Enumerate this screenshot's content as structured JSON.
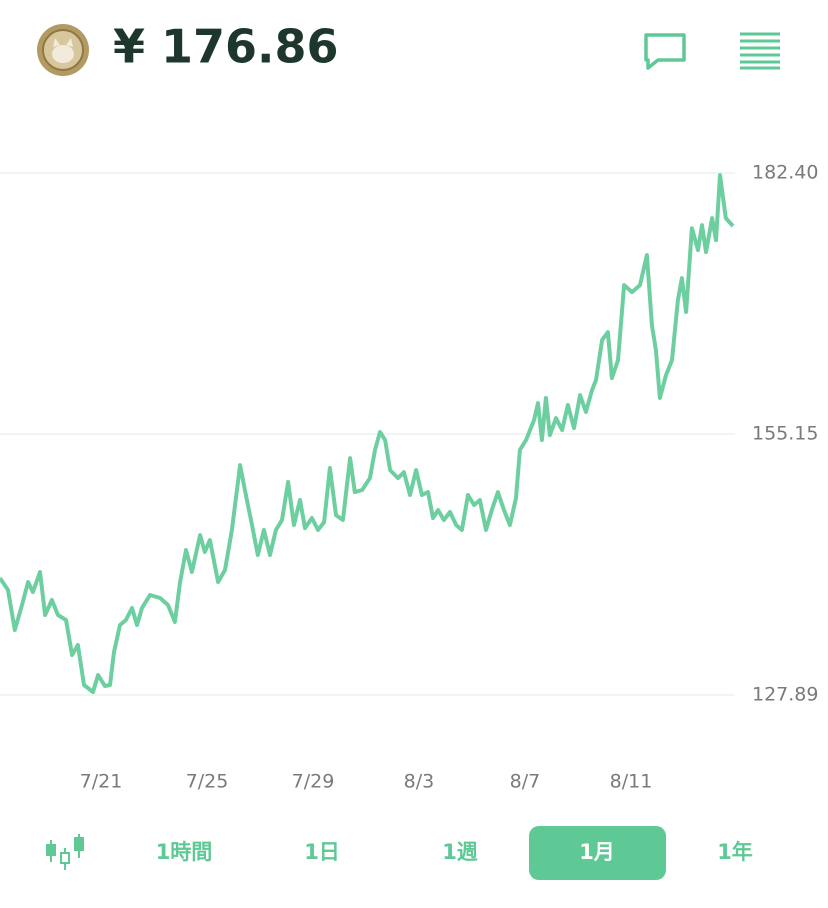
{
  "header": {
    "price": "¥ 176.86"
  },
  "chart_data": {
    "type": "line",
    "color": "#6dcfa0",
    "x": [
      -3.81,
      -3.51,
      -3.25,
      -2.98,
      -2.75,
      -2.57,
      -2.3,
      -2.11,
      -1.85,
      -1.62,
      -1.32,
      -1.09,
      -0.87,
      -0.64,
      -0.3,
      -0.11,
      0.15,
      0.34,
      0.49,
      0.72,
      0.94,
      1.17,
      1.36,
      1.55,
      1.85,
      2.23,
      2.53,
      2.79,
      2.98,
      3.21,
      3.43,
      3.74,
      3.92,
      4.11,
      4.42,
      4.68,
      4.94,
      5.25,
      5.43,
      5.7,
      5.92,
      6.15,
      6.38,
      6.6,
      6.83,
      7.06,
      7.28,
      7.51,
      7.7,
      7.96,
      8.19,
      8.42,
      8.64,
      8.87,
      9.13,
      9.4,
      9.58,
      9.85,
      10.15,
      10.34,
      10.53,
      10.72,
      10.91,
      11.21,
      11.43,
      11.66,
      11.89,
      12.11,
      12.34,
      12.53,
      12.72,
      12.94,
      13.17,
      13.4,
      13.62,
      13.85,
      14.08,
      14.3,
      14.53,
      14.75,
      14.98,
      15.21,
      15.43,
      15.66,
      15.81,
      16.04,
      16.34,
      16.49,
      16.64,
      16.79,
      16.94,
      17.17,
      17.4,
      17.62,
      17.85,
      18.08,
      18.3,
      18.53,
      18.68,
      18.91,
      19.13,
      19.28,
      19.51,
      19.74,
      20.04,
      20.34,
      20.6,
      20.79,
      20.94,
      21.09,
      21.32,
      21.55,
      21.77,
      21.92,
      22.08,
      22.3,
      22.53,
      22.68,
      22.83,
      23.06,
      23.21,
      23.36,
      23.58,
      23.85
    ],
    "values": [
      140.1,
      138.85,
      134.68,
      137.29,
      139.69,
      138.64,
      140.73,
      136.24,
      137.81,
      136.24,
      135.72,
      132.07,
      133.11,
      128.93,
      128.2,
      129.98,
      128.83,
      128.93,
      132.38,
      135.2,
      135.72,
      136.97,
      135.2,
      136.97,
      138.33,
      138.02,
      137.29,
      135.51,
      139.58,
      143.03,
      140.73,
      144.59,
      142.82,
      144.07,
      139.69,
      140.94,
      145.12,
      151.9,
      149.29,
      145.64,
      142.51,
      145.12,
      142.51,
      145.12,
      146.16,
      150.13,
      145.64,
      148.25,
      145.32,
      146.37,
      145.12,
      145.95,
      151.59,
      146.68,
      146.16,
      152.63,
      149.08,
      149.29,
      150.54,
      153.47,
      155.35,
      154.51,
      151.38,
      150.54,
      151.17,
      148.77,
      151.38,
      148.77,
      149.08,
      146.37,
      147.2,
      146.16,
      147.0,
      145.64,
      145.12,
      148.77,
      147.73,
      148.25,
      145.12,
      147.2,
      149.08,
      147.2,
      145.64,
      148.46,
      153.47,
      154.51,
      156.6,
      158.37,
      154.51,
      158.9,
      155.03,
      156.81,
      155.56,
      158.17,
      155.76,
      159.21,
      157.44,
      159.73,
      160.78,
      164.95,
      165.79,
      160.98,
      162.86,
      170.69,
      169.96,
      170.69,
      173.83,
      166.52,
      163.91,
      158.9,
      161.3,
      162.86,
      169.13,
      171.42,
      167.88,
      176.64,
      174.35,
      176.96,
      174.14,
      177.69,
      175.39,
      182.18,
      177.69,
      176.86
    ],
    "xlim": [
      -3.81,
      23.85
    ],
    "xticks": [
      {
        "value": 0,
        "label": "7/21"
      },
      {
        "value": 4,
        "label": "7/25"
      },
      {
        "value": 8,
        "label": "7/29"
      },
      {
        "value": 12,
        "label": "8/3"
      },
      {
        "value": 16,
        "label": "8/7"
      },
      {
        "value": 20,
        "label": "8/11"
      }
    ],
    "ylim": [
      127.89,
      182.4
    ],
    "yticks": [
      127.89,
      155.15,
      {
        "value": 182.4,
        "label": "182.40"
      }
    ],
    "grid": true
  },
  "tabs": [
    {
      "label": "1時間"
    },
    {
      "label": "1日"
    },
    {
      "label": "1週"
    },
    {
      "label": "1月"
    },
    {
      "label": "1年"
    }
  ],
  "selected_tab": 3
}
